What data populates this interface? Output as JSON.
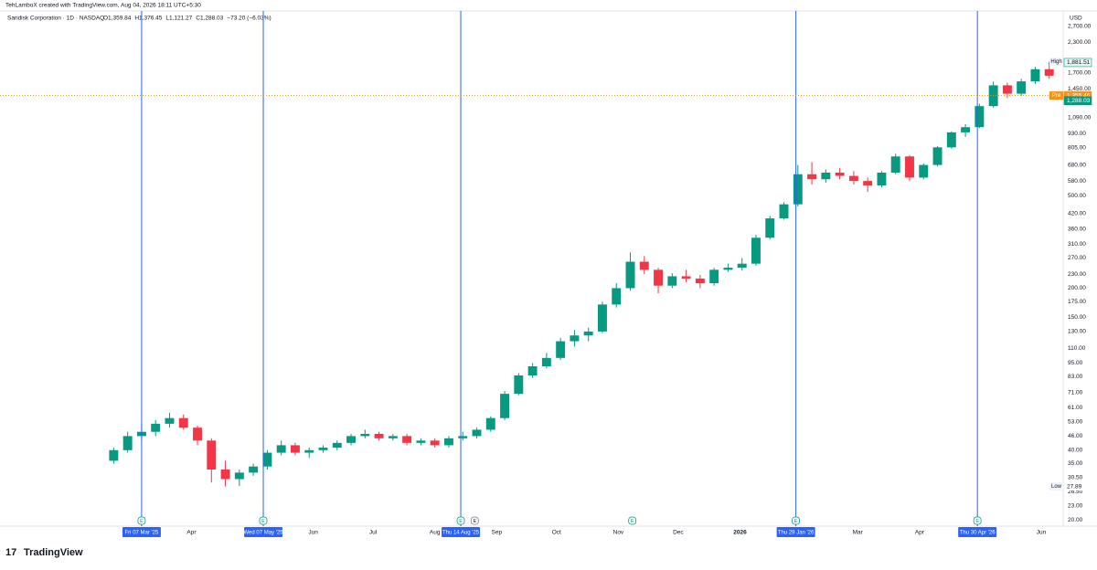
{
  "header": {
    "text": "TehLamboX created with TradingView.com, Aug 04, 2026 18:11 UTC+5:30"
  },
  "chart_data": {
    "type": "candlestick",
    "title": "Sandisk Corporation · 1D · NASDAQ",
    "legend_values": [
      "O1,359.84",
      "H1,376.45",
      "L1,121.27",
      "C1,288.03",
      "−73.20 (−6.03%)"
    ],
    "currency": "USD",
    "up_color": "#089981",
    "down_color": "#f23645",
    "event_color": "#2962ff",
    "log_scale": true,
    "grid": false,
    "xlim": [
      "2024-12-26",
      "2026-06-12"
    ],
    "ylim": [
      18.8,
      3140
    ],
    "x": [
      "2025-02-21",
      "2025-02-28",
      "2025-03-07",
      "2025-03-14",
      "2025-03-21",
      "2025-03-28",
      "2025-04-04",
      "2025-04-11",
      "2025-04-18",
      "2025-04-25",
      "2025-05-02",
      "2025-05-09",
      "2025-05-16",
      "2025-05-23",
      "2025-05-30",
      "2025-06-06",
      "2025-06-13",
      "2025-06-20",
      "2025-06-27",
      "2025-07-04",
      "2025-07-11",
      "2025-07-18",
      "2025-07-25",
      "2025-08-01",
      "2025-08-08",
      "2025-08-15",
      "2025-08-22",
      "2025-08-29",
      "2025-09-05",
      "2025-09-12",
      "2025-09-19",
      "2025-09-26",
      "2025-10-03",
      "2025-10-10",
      "2025-10-17",
      "2025-10-24",
      "2025-10-31",
      "2025-11-07",
      "2025-11-14",
      "2025-11-21",
      "2025-11-28",
      "2025-12-05",
      "2025-12-12",
      "2025-12-19",
      "2025-12-26",
      "2026-01-02",
      "2026-01-09",
      "2026-01-16",
      "2026-01-23",
      "2026-01-30",
      "2026-02-06",
      "2026-02-13",
      "2026-02-20",
      "2026-02-27",
      "2026-03-06",
      "2026-03-13",
      "2026-03-20",
      "2026-03-27",
      "2026-04-03",
      "2026-04-10",
      "2026-04-17",
      "2026-04-24",
      "2026-05-01",
      "2026-05-08",
      "2026-05-15",
      "2026-05-22",
      "2026-05-29",
      "2026-06-05"
    ],
    "open": [
      36,
      40,
      46,
      48,
      52,
      55,
      50,
      44,
      33,
      30,
      32,
      34,
      39,
      42,
      39,
      40,
      41,
      43,
      46,
      47,
      45,
      46,
      43,
      44,
      42,
      45,
      46,
      49,
      55,
      70,
      84,
      92,
      100,
      118,
      125,
      130,
      170,
      200,
      260,
      240,
      205,
      225,
      220,
      210,
      240,
      245,
      255,
      330,
      400,
      460,
      620,
      590,
      630,
      610,
      580,
      555,
      630,
      740,
      600,
      680,
      810,
      940,
      990,
      1220,
      1500,
      1380,
      1560,
      1760
    ],
    "high": [
      41,
      48,
      52,
      54,
      58,
      57,
      51,
      45,
      36,
      33,
      35,
      40,
      44,
      43,
      41,
      42,
      44,
      47,
      49,
      48,
      47,
      47,
      45,
      45,
      46,
      48,
      50,
      56,
      72,
      86,
      95,
      105,
      122,
      132,
      135,
      175,
      210,
      285,
      275,
      245,
      232,
      240,
      228,
      245,
      255,
      270,
      340,
      410,
      470,
      680,
      700,
      650,
      660,
      640,
      600,
      640,
      760,
      750,
      690,
      820,
      950,
      1020,
      1250,
      1560,
      1540,
      1600,
      1800,
      1895
    ],
    "low": [
      35,
      39,
      44,
      46,
      50,
      49,
      42,
      29,
      27.89,
      28,
      31,
      33,
      38,
      38,
      37,
      39,
      40,
      42,
      45,
      44,
      44,
      42,
      42,
      41,
      41,
      44,
      45,
      48,
      54,
      69,
      82,
      90,
      98,
      112,
      118,
      128,
      165,
      195,
      230,
      190,
      200,
      212,
      200,
      205,
      235,
      238,
      250,
      325,
      395,
      450,
      560,
      570,
      590,
      560,
      520,
      545,
      620,
      580,
      590,
      670,
      800,
      900,
      980,
      1200,
      1320,
      1350,
      1520,
      1600
    ],
    "close": [
      40,
      46,
      48,
      52,
      55,
      50,
      44,
      33,
      30,
      32,
      34,
      39,
      42,
      39,
      40,
      41,
      43,
      46,
      47,
      45,
      46,
      43,
      44,
      42,
      45,
      46,
      49,
      55,
      70,
      84,
      92,
      100,
      118,
      125,
      130,
      170,
      200,
      260,
      240,
      205,
      225,
      220,
      210,
      240,
      245,
      255,
      330,
      400,
      460,
      620,
      590,
      630,
      610,
      580,
      555,
      630,
      740,
      600,
      680,
      810,
      940,
      990,
      1220,
      1500,
      1380,
      1560,
      1760,
      1650
    ],
    "yticks": [
      {
        "value": 2700,
        "label": "2,700.00"
      },
      {
        "value": 2300,
        "label": "2,300.00"
      },
      {
        "value": 1700,
        "label": "1,700.00"
      },
      {
        "value": 1450,
        "label": "1,450.00"
      },
      {
        "value": 1090,
        "label": "1,090.00"
      },
      {
        "value": 930,
        "label": "930.00"
      },
      {
        "value": 805,
        "label": "805.00"
      },
      {
        "value": 680,
        "label": "680.00"
      },
      {
        "value": 580,
        "label": "580.00"
      },
      {
        "value": 500,
        "label": "500.00"
      },
      {
        "value": 420,
        "label": "420.00"
      },
      {
        "value": 360,
        "label": "360.00"
      },
      {
        "value": 310,
        "label": "310.00"
      },
      {
        "value": 270,
        "label": "270.00"
      },
      {
        "value": 230,
        "label": "230.00"
      },
      {
        "value": 200,
        "label": "200.00"
      },
      {
        "value": 175,
        "label": "175.00"
      },
      {
        "value": 150,
        "label": "150.00"
      },
      {
        "value": 130,
        "label": "130.00"
      },
      {
        "value": 110,
        "label": "110.00"
      },
      {
        "value": 95,
        "label": "95.00"
      },
      {
        "value": 83,
        "label": "83.00"
      },
      {
        "value": 71,
        "label": "71.00"
      },
      {
        "value": 61,
        "label": "61.00"
      },
      {
        "value": 53,
        "label": "53.00"
      },
      {
        "value": 46,
        "label": "46.00"
      },
      {
        "value": 40,
        "label": "40.00"
      },
      {
        "value": 35,
        "label": "35.00"
      },
      {
        "value": 30.5,
        "label": "30.50"
      },
      {
        "value": 26.5,
        "label": "26.50"
      },
      {
        "value": 23,
        "label": "23.00"
      },
      {
        "value": 20,
        "label": "20.00"
      }
    ],
    "xticks": [
      {
        "value": "2025-04-01",
        "label": "Apr"
      },
      {
        "value": "2025-06-01",
        "label": "Jun"
      },
      {
        "value": "2025-07-01",
        "label": "Jul"
      },
      {
        "value": "2025-08-01",
        "label": "Aug"
      },
      {
        "value": "2025-09-01",
        "label": "Sep"
      },
      {
        "value": "2025-10-01",
        "label": "Oct"
      },
      {
        "value": "2025-11-01",
        "label": "Nov"
      },
      {
        "value": "2025-12-01",
        "label": "Dec"
      },
      {
        "value": "2026-01-01",
        "label": "2026"
      },
      {
        "value": "2026-03-01",
        "label": "Mar"
      },
      {
        "value": "2026-04-01",
        "label": "Apr"
      },
      {
        "value": "2026-06-01",
        "label": "Jun"
      }
    ],
    "events": [
      {
        "x": "2025-03-07",
        "label": "Fri 07 Mar '25"
      },
      {
        "x": "2025-05-07",
        "label": "Wed 07 May '25"
      },
      {
        "x": "2025-08-14",
        "label": "Thu 14 Aug '25"
      },
      {
        "x": "2026-01-29",
        "label": "Thu 29 Jan '26"
      },
      {
        "x": "2026-04-30",
        "label": "Thu 30 Apr '26"
      }
    ],
    "earnings_markers": [
      {
        "x": "2025-03-07",
        "label": "E"
      },
      {
        "x": "2025-05-07",
        "label": "E"
      },
      {
        "x": "2025-08-14",
        "label": "E"
      },
      {
        "x": "2025-08-21",
        "label": "E"
      },
      {
        "x": "2025-11-08",
        "label": "E"
      },
      {
        "x": "2026-01-29",
        "label": "E"
      },
      {
        "x": "2026-04-30",
        "label": "E"
      }
    ],
    "price_labels": [
      {
        "value": 1895,
        "label": "1,895.00",
        "tag": "High",
        "color": "#ffffff"
      },
      {
        "value": 1881.51,
        "label": "1,881.51",
        "color": "#e8f5f2"
      },
      {
        "value": 1355.46,
        "label": "1,355.46",
        "tag": "Pre",
        "color": "#f7931a"
      },
      {
        "value": 1288.03,
        "label": "1,288.03",
        "color": "#089981"
      },
      {
        "value": 27.89,
        "label": "27.89",
        "tag": "Low",
        "color": "#ffffff"
      }
    ]
  },
  "footer": {
    "logo": "TradingView"
  }
}
